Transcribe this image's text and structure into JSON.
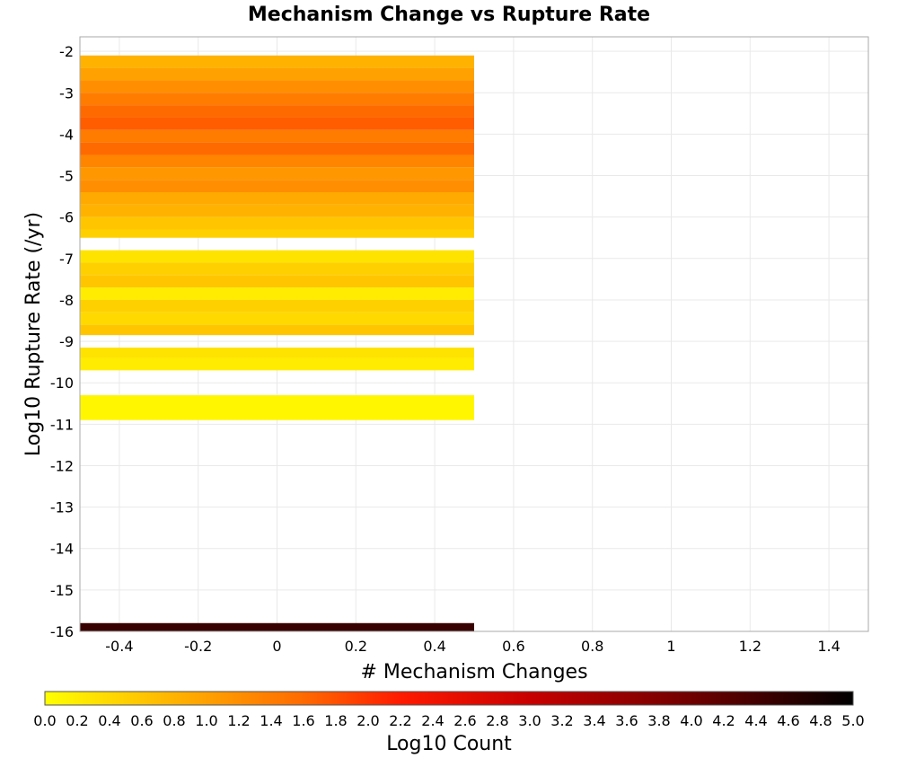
{
  "chart_data": {
    "type": "heatmap",
    "title": "Mechanism Change vs Rupture Rate",
    "xlabel": "# Mechanism Changes",
    "ylabel": "Log10 Rupture Rate (/yr)",
    "xlim": [
      -0.5,
      1.5
    ],
    "ylim": [
      -16,
      -1.65
    ],
    "x_ticks": [
      -0.4,
      -0.2,
      0,
      0.2,
      0.4,
      0.6,
      0.8,
      1,
      1.2,
      1.4
    ],
    "x_tick_labels": [
      "-0.4",
      "-0.2",
      "0",
      "0.2",
      "0.4",
      "0.6",
      "0.8",
      "1",
      "1.2",
      "1.4"
    ],
    "y_ticks": [
      -2,
      -3,
      -4,
      -5,
      -6,
      -7,
      -8,
      -9,
      -10,
      -11,
      -12,
      -13,
      -14,
      -15,
      -16
    ],
    "y_tick_labels": [
      "-2",
      "-3",
      "-4",
      "-5",
      "-6",
      "-7",
      "-8",
      "-9",
      "-10",
      "-11",
      "-12",
      "-13",
      "-14",
      "-15",
      "-16"
    ],
    "grid": true,
    "cell_x_range": [
      -0.5,
      0.5
    ],
    "cells": [
      {
        "y0": -2.4,
        "y1": -2.1,
        "value": 0.8
      },
      {
        "y0": -2.7,
        "y1": -2.4,
        "value": 1.0
      },
      {
        "y0": -3.0,
        "y1": -2.7,
        "value": 1.2
      },
      {
        "y0": -3.3,
        "y1": -3.0,
        "value": 1.4
      },
      {
        "y0": -3.6,
        "y1": -3.3,
        "value": 1.6
      },
      {
        "y0": -3.9,
        "y1": -3.6,
        "value": 1.7
      },
      {
        "y0": -4.2,
        "y1": -3.9,
        "value": 1.4
      },
      {
        "y0": -4.5,
        "y1": -4.2,
        "value": 1.6
      },
      {
        "y0": -4.8,
        "y1": -4.5,
        "value": 1.3
      },
      {
        "y0": -5.1,
        "y1": -4.8,
        "value": 1.1
      },
      {
        "y0": -5.4,
        "y1": -5.1,
        "value": 1.2
      },
      {
        "y0": -5.7,
        "y1": -5.4,
        "value": 0.9
      },
      {
        "y0": -6.0,
        "y1": -5.7,
        "value": 0.8
      },
      {
        "y0": -6.3,
        "y1": -6.0,
        "value": 0.6
      },
      {
        "y0": -6.5,
        "y1": -6.3,
        "value": 0.5
      },
      {
        "y0": -7.1,
        "y1": -6.8,
        "value": 0.3
      },
      {
        "y0": -7.4,
        "y1": -7.1,
        "value": 0.5
      },
      {
        "y0": -7.7,
        "y1": -7.4,
        "value": 0.6
      },
      {
        "y0": -8.0,
        "y1": -7.7,
        "value": 0.2
      },
      {
        "y0": -8.3,
        "y1": -8.0,
        "value": 0.5
      },
      {
        "y0": -8.6,
        "y1": -8.3,
        "value": 0.4
      },
      {
        "y0": -8.85,
        "y1": -8.6,
        "value": 0.6
      },
      {
        "y0": -9.4,
        "y1": -9.15,
        "value": 0.3
      },
      {
        "y0": -9.7,
        "y1": -9.4,
        "value": 0.2
      },
      {
        "y0": -10.9,
        "y1": -10.3,
        "value": 0.1
      },
      {
        "y0": -16.0,
        "y1": -15.8,
        "value": 4.5
      }
    ],
    "colorbar": {
      "label": "Log10 Count",
      "min": 0.0,
      "max": 5.0,
      "ticks": [
        "0.0",
        "0.2",
        "0.4",
        "0.6",
        "0.8",
        "1.0",
        "1.2",
        "1.4",
        "1.6",
        "1.8",
        "2.0",
        "2.2",
        "2.4",
        "2.6",
        "2.8",
        "3.0",
        "3.2",
        "3.4",
        "3.6",
        "3.8",
        "4.0",
        "4.2",
        "4.4",
        "4.6",
        "4.8",
        "5.0"
      ],
      "stops": [
        {
          "value": 0.0,
          "color": "#ffff00"
        },
        {
          "value": 0.8,
          "color": "#ffb300"
        },
        {
          "value": 1.6,
          "color": "#ff6a00"
        },
        {
          "value": 2.2,
          "color": "#ff1a00"
        },
        {
          "value": 3.0,
          "color": "#c80000"
        },
        {
          "value": 4.0,
          "color": "#700000"
        },
        {
          "value": 5.0,
          "color": "#000000"
        }
      ]
    }
  }
}
